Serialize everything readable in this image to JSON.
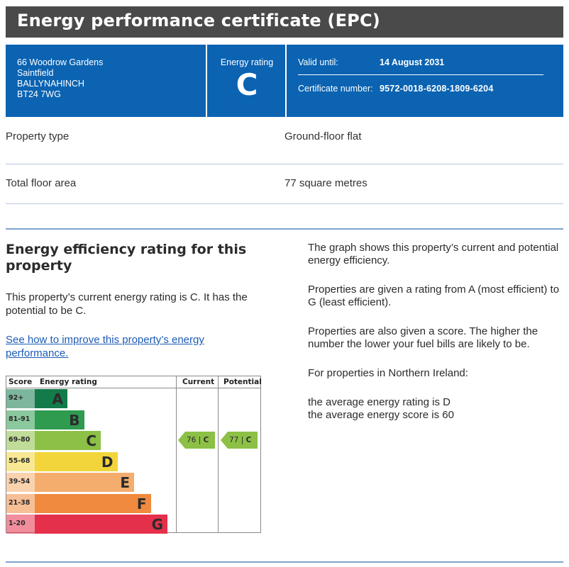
{
  "header": {
    "title": "Energy performance certificate (EPC)"
  },
  "summary": {
    "address_lines": [
      "66 Woodrow Gardens",
      "Saintfield",
      "BALLYNAHINCH",
      "BT24 7WG"
    ],
    "energy_rating_label": "Energy rating",
    "energy_rating": "C",
    "valid_until_label": "Valid until:",
    "valid_until": "14 August 2031",
    "certificate_number_label": "Certificate number:",
    "certificate_number": "9572-0018-6208-1809-6204",
    "band_color": "#0b63b2"
  },
  "property": {
    "type_label": "Property type",
    "type_value": "Ground-floor flat",
    "area_label": "Total floor area",
    "area_value": "77 square metres"
  },
  "efficiency": {
    "heading": "Energy efficiency rating for this property",
    "current_text": "This property’s current energy rating is C. It has the potential to be C.",
    "link_text": "See how to improve this property’s energy performance.",
    "right_paragraphs": [
      "The graph shows this property’s current and potential energy efficiency.",
      "Properties are given a rating from A (most efficient) to G (least efficient).",
      "Properties are also given a score. The higher the number the lower your fuel bills are likely to be.",
      "For properties in Northern Ireland:"
    ],
    "averages": [
      "the average energy rating is D",
      "the average energy score is 60"
    ]
  },
  "chart_data": {
    "type": "bar",
    "headers": {
      "score": "Score",
      "rating": "Energy rating",
      "current": "Current",
      "potential": "Potential"
    },
    "bands": [
      {
        "score": "92+",
        "letter": "A",
        "color": "#137a4a"
      },
      {
        "score": "81-91",
        "letter": "B",
        "color": "#2e9b4f"
      },
      {
        "score": "69-80",
        "letter": "C",
        "color": "#8cc046"
      },
      {
        "score": "55-68",
        "letter": "D",
        "color": "#f2d53a"
      },
      {
        "score": "39-54",
        "letter": "E",
        "color": "#f4ad6c"
      },
      {
        "score": "21-38",
        "letter": "F",
        "color": "#ef8a3e"
      },
      {
        "score": "1-20",
        "letter": "G",
        "color": "#e5304b"
      }
    ],
    "current": {
      "score": "76",
      "letter": "C",
      "band_index": 2
    },
    "potential": {
      "score": "77",
      "letter": "C",
      "band_index": 2
    }
  }
}
